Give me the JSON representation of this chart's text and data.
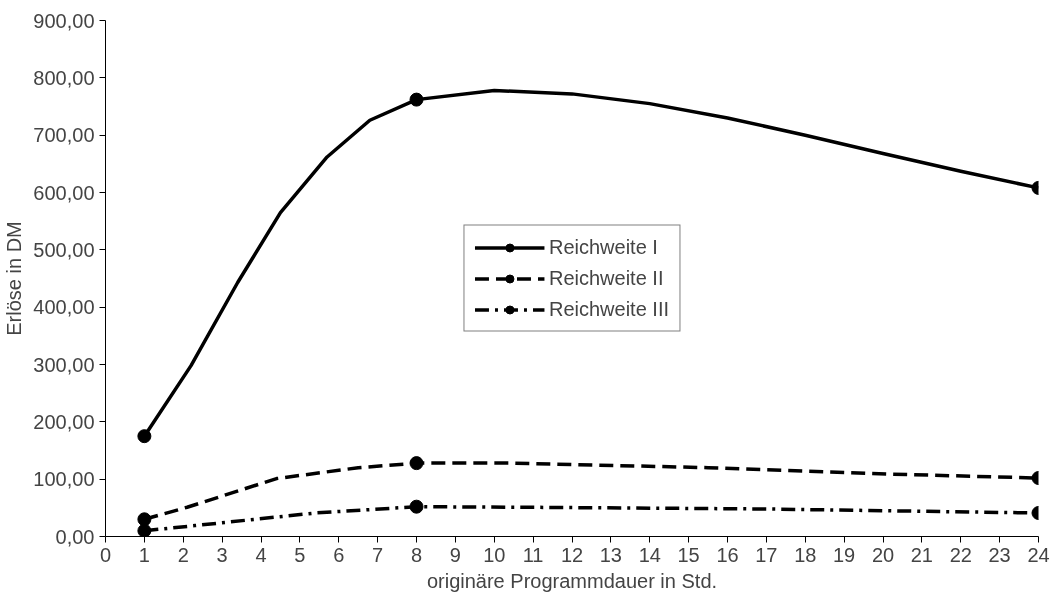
{
  "chart_data": {
    "type": "line",
    "xlabel": "originäre Programmdauer in Std.",
    "ylabel": "Erlöse in DM",
    "series": [
      {
        "name": "Reichweite I",
        "color": "#000000",
        "line_style": "solid",
        "marker": "none",
        "x": [
          1,
          2.2,
          3.4,
          4.5,
          5.7,
          6.8,
          8,
          10,
          12,
          14,
          16,
          18,
          20,
          22,
          24
        ],
        "values": [
          175,
          298,
          443,
          565,
          662,
          726,
          762,
          778,
          772,
          755,
          730,
          700,
          668,
          637,
          608
        ]
      },
      {
        "type": "scatter",
        "color": "#000000",
        "x": [
          1,
          8,
          24
        ],
        "values": [
          175,
          762,
          608
        ],
        "marker": "circle"
      },
      {
        "name": "Reichweite II",
        "color": "#000000",
        "line_style": "dashed",
        "marker": "none",
        "x": [
          1,
          2.1,
          4.4,
          6.5,
          8,
          10.5,
          15.5,
          20.1,
          24
        ],
        "values": [
          30,
          51,
          101,
          120,
          128,
          128,
          120,
          109,
          102
        ]
      },
      {
        "type": "scatter",
        "color": "#000000",
        "x": [
          1,
          8,
          24
        ],
        "values": [
          30,
          128,
          102
        ],
        "marker": "circle"
      },
      {
        "name": "Reichweite III",
        "color": "#000000",
        "line_style": "dashdot",
        "marker": "none",
        "x": [
          1,
          2.3,
          5.4,
          8,
          10.8,
          17,
          24
        ],
        "values": [
          10,
          19,
          41,
          52,
          51,
          48,
          41
        ]
      },
      {
        "type": "scatter",
        "color": "#000000",
        "x": [
          1,
          8,
          24
        ],
        "values": [
          10,
          52,
          41
        ],
        "marker": "circle"
      }
    ],
    "xlim": [
      0,
      24
    ],
    "xticks": [
      0,
      1,
      2,
      3,
      4,
      5,
      6,
      7,
      8,
      9,
      10,
      11,
      12,
      13,
      14,
      15,
      16,
      17,
      18,
      19,
      20,
      21,
      22,
      23,
      24
    ],
    "ylim": [
      0,
      900
    ],
    "yticks": [
      {
        "value": 0,
        "label": "0,00"
      },
      {
        "value": 100,
        "label": "100,00"
      },
      {
        "value": 200,
        "label": "200,00"
      },
      {
        "value": 300,
        "label": "300,00"
      },
      {
        "value": 400,
        "label": "400,00"
      },
      {
        "value": 500,
        "label": "500,00"
      },
      {
        "value": 600,
        "label": "600,00"
      },
      {
        "value": 700,
        "label": "700,00"
      },
      {
        "value": 800,
        "label": "800,00"
      },
      {
        "value": 900,
        "label": "900,00"
      }
    ],
    "grid": false,
    "legend": "center"
  }
}
